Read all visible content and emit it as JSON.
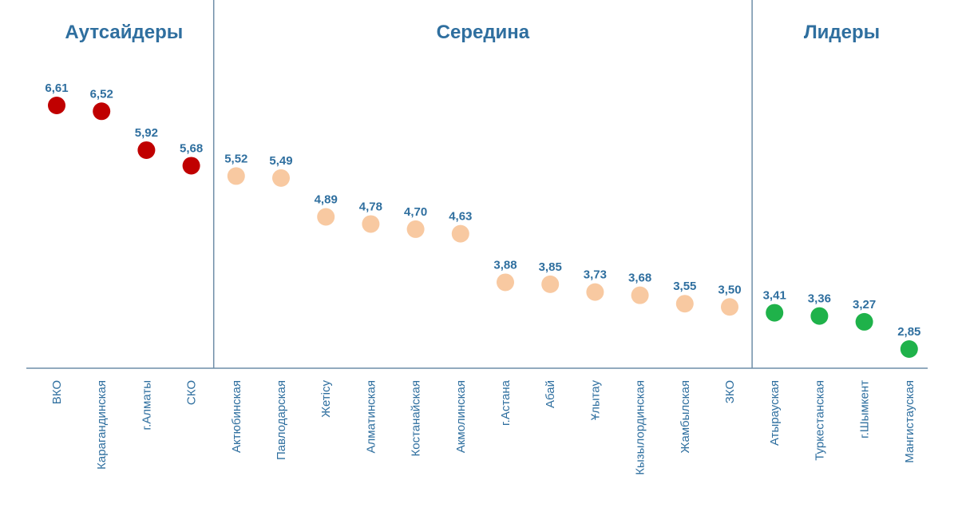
{
  "chart_data": {
    "type": "scatter",
    "title": "",
    "xlabel": "",
    "ylabel": "",
    "ylim": [
      2.5,
      7.0
    ],
    "grid": false,
    "colors": {
      "text": "#2f6f9f",
      "axis": "#6f8ea8",
      "outsiders": "#c00000",
      "middle": "#f8c9a1",
      "leaders": "#1fb24a"
    },
    "groups": [
      {
        "name": "Аутсайдеры",
        "color_key": "outsiders",
        "start": 0,
        "end": 3
      },
      {
        "name": "Середина",
        "color_key": "middle",
        "start": 4,
        "end": 15
      },
      {
        "name": "Лидеры",
        "color_key": "leaders",
        "start": 16,
        "end": 19
      }
    ],
    "categories": [
      "ВКО",
      "Карагандинская",
      "г.Алматы",
      "СКО",
      "Актюбинская",
      "Павлодарская",
      "Жетісу",
      "Алматинская",
      "Костанайская",
      "Акмолинская",
      "г.Астана",
      "Абай",
      "Ұлытау",
      "Кызылординская",
      "Жамбылская",
      "ЗКО",
      "Атырауская",
      "Туркестанская",
      "г.Шымкент",
      "Мангистауская"
    ],
    "values": [
      6.61,
      6.52,
      5.92,
      5.68,
      5.52,
      5.49,
      4.89,
      4.78,
      4.7,
      4.63,
      3.88,
      3.85,
      3.73,
      3.68,
      3.55,
      3.5,
      3.41,
      3.36,
      3.27,
      2.85
    ],
    "value_labels": [
      "6,61",
      "6,52",
      "5,92",
      "5,68",
      "5,52",
      "5,49",
      "4,89",
      "4,78",
      "4,70",
      "4,63",
      "3,88",
      "3,85",
      "3,73",
      "3,68",
      "3,55",
      "3,50",
      "3,41",
      "3,36",
      "3,27",
      "2,85"
    ]
  }
}
